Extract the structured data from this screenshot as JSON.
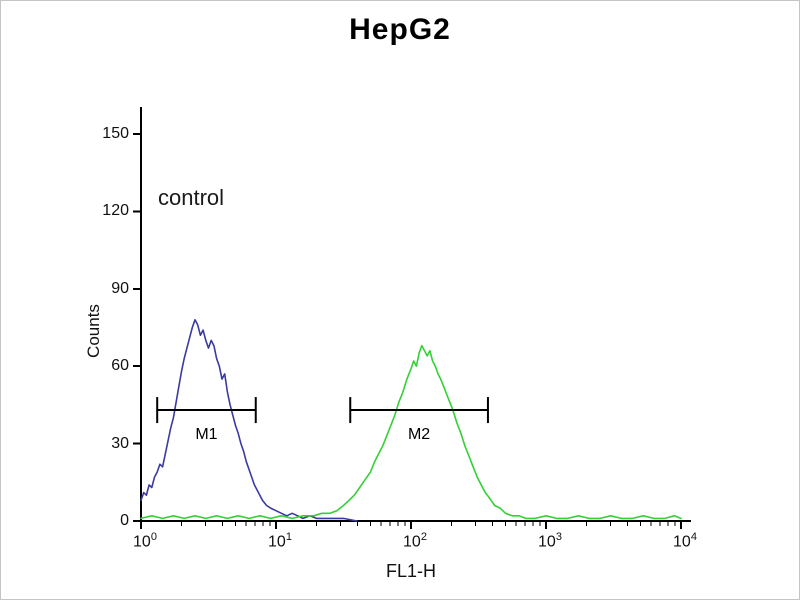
{
  "chart_data": {
    "type": "line",
    "title": "HepG2",
    "annotation": "control",
    "xlabel": "FL1-H",
    "ylabel": "Counts",
    "x_scale": "log10",
    "xlim_exponents": [
      0,
      4
    ],
    "ylim": [
      0,
      150
    ],
    "y_ticks": [
      0,
      30,
      60,
      90,
      120,
      150
    ],
    "x_ticks": [
      {
        "base": "10",
        "exp": "0"
      },
      {
        "base": "10",
        "exp": "1"
      },
      {
        "base": "10",
        "exp": "2"
      },
      {
        "base": "10",
        "exp": "3"
      },
      {
        "base": "10",
        "exp": "4"
      }
    ],
    "grid": false,
    "series": [
      {
        "name": "blue",
        "color": "#3A3AA2",
        "points": [
          [
            0.0,
            8
          ],
          [
            0.02,
            11
          ],
          [
            0.04,
            10
          ],
          [
            0.06,
            14
          ],
          [
            0.08,
            13
          ],
          [
            0.1,
            17
          ],
          [
            0.12,
            19
          ],
          [
            0.14,
            22
          ],
          [
            0.16,
            21
          ],
          [
            0.18,
            26
          ],
          [
            0.2,
            31
          ],
          [
            0.22,
            36
          ],
          [
            0.24,
            40
          ],
          [
            0.26,
            46
          ],
          [
            0.28,
            52
          ],
          [
            0.3,
            58
          ],
          [
            0.32,
            63
          ],
          [
            0.34,
            67
          ],
          [
            0.36,
            71
          ],
          [
            0.38,
            75
          ],
          [
            0.4,
            78
          ],
          [
            0.42,
            76
          ],
          [
            0.44,
            72
          ],
          [
            0.46,
            74
          ],
          [
            0.48,
            70
          ],
          [
            0.5,
            67
          ],
          [
            0.52,
            70
          ],
          [
            0.54,
            68
          ],
          [
            0.56,
            63
          ],
          [
            0.58,
            60
          ],
          [
            0.6,
            55
          ],
          [
            0.62,
            57
          ],
          [
            0.64,
            50
          ],
          [
            0.66,
            45
          ],
          [
            0.68,
            41
          ],
          [
            0.7,
            37
          ],
          [
            0.72,
            34
          ],
          [
            0.74,
            30
          ],
          [
            0.76,
            27
          ],
          [
            0.78,
            23
          ],
          [
            0.8,
            20
          ],
          [
            0.82,
            17
          ],
          [
            0.84,
            14
          ],
          [
            0.86,
            12
          ],
          [
            0.88,
            10
          ],
          [
            0.9,
            8
          ],
          [
            0.93,
            6
          ],
          [
            0.96,
            5
          ],
          [
            1.0,
            4
          ],
          [
            1.04,
            3
          ],
          [
            1.08,
            2
          ],
          [
            1.12,
            3
          ],
          [
            1.16,
            2
          ],
          [
            1.2,
            1
          ],
          [
            1.25,
            2
          ],
          [
            1.3,
            1
          ],
          [
            1.35,
            1
          ],
          [
            1.4,
            1
          ],
          [
            1.5,
            1
          ],
          [
            1.6,
            0
          ]
        ]
      },
      {
        "name": "green",
        "color": "#35D035",
        "points": [
          [
            0.0,
            1
          ],
          [
            0.08,
            2
          ],
          [
            0.16,
            1
          ],
          [
            0.24,
            2
          ],
          [
            0.32,
            1
          ],
          [
            0.4,
            2
          ],
          [
            0.48,
            1
          ],
          [
            0.56,
            2
          ],
          [
            0.64,
            1
          ],
          [
            0.72,
            2
          ],
          [
            0.8,
            1
          ],
          [
            0.88,
            2
          ],
          [
            0.96,
            1
          ],
          [
            1.04,
            2
          ],
          [
            1.12,
            1
          ],
          [
            1.2,
            2
          ],
          [
            1.28,
            2
          ],
          [
            1.34,
            3
          ],
          [
            1.4,
            3
          ],
          [
            1.45,
            4
          ],
          [
            1.5,
            6
          ],
          [
            1.54,
            8
          ],
          [
            1.58,
            10
          ],
          [
            1.62,
            13
          ],
          [
            1.66,
            16
          ],
          [
            1.7,
            19
          ],
          [
            1.73,
            23
          ],
          [
            1.76,
            26
          ],
          [
            1.79,
            29
          ],
          [
            1.82,
            33
          ],
          [
            1.85,
            37
          ],
          [
            1.88,
            41
          ],
          [
            1.91,
            46
          ],
          [
            1.94,
            50
          ],
          [
            1.97,
            55
          ],
          [
            2.0,
            59
          ],
          [
            2.02,
            62
          ],
          [
            2.04,
            60
          ],
          [
            2.06,
            65
          ],
          [
            2.08,
            68
          ],
          [
            2.1,
            66
          ],
          [
            2.12,
            64
          ],
          [
            2.14,
            66
          ],
          [
            2.16,
            62
          ],
          [
            2.18,
            60
          ],
          [
            2.2,
            57
          ],
          [
            2.22,
            55
          ],
          [
            2.25,
            51
          ],
          [
            2.28,
            47
          ],
          [
            2.31,
            43
          ],
          [
            2.34,
            38
          ],
          [
            2.37,
            34
          ],
          [
            2.4,
            29
          ],
          [
            2.43,
            25
          ],
          [
            2.46,
            21
          ],
          [
            2.49,
            17
          ],
          [
            2.52,
            14
          ],
          [
            2.55,
            11
          ],
          [
            2.58,
            9
          ],
          [
            2.62,
            6
          ],
          [
            2.66,
            5
          ],
          [
            2.7,
            3
          ],
          [
            2.75,
            2
          ],
          [
            2.8,
            2
          ],
          [
            2.85,
            1
          ],
          [
            2.92,
            1
          ],
          [
            3.0,
            2
          ],
          [
            3.08,
            1
          ],
          [
            3.16,
            1
          ],
          [
            3.24,
            2
          ],
          [
            3.32,
            1
          ],
          [
            3.4,
            1
          ],
          [
            3.48,
            2
          ],
          [
            3.56,
            1
          ],
          [
            3.64,
            1
          ],
          [
            3.72,
            2
          ],
          [
            3.8,
            1
          ],
          [
            3.88,
            1
          ],
          [
            3.95,
            2
          ],
          [
            4.0,
            1
          ]
        ]
      }
    ],
    "markers": [
      {
        "label": "M1",
        "log_start": 0.12,
        "log_end": 0.85,
        "count_y": 43
      },
      {
        "label": "M2",
        "log_start": 1.55,
        "log_end": 2.57,
        "count_y": 43
      }
    ]
  }
}
